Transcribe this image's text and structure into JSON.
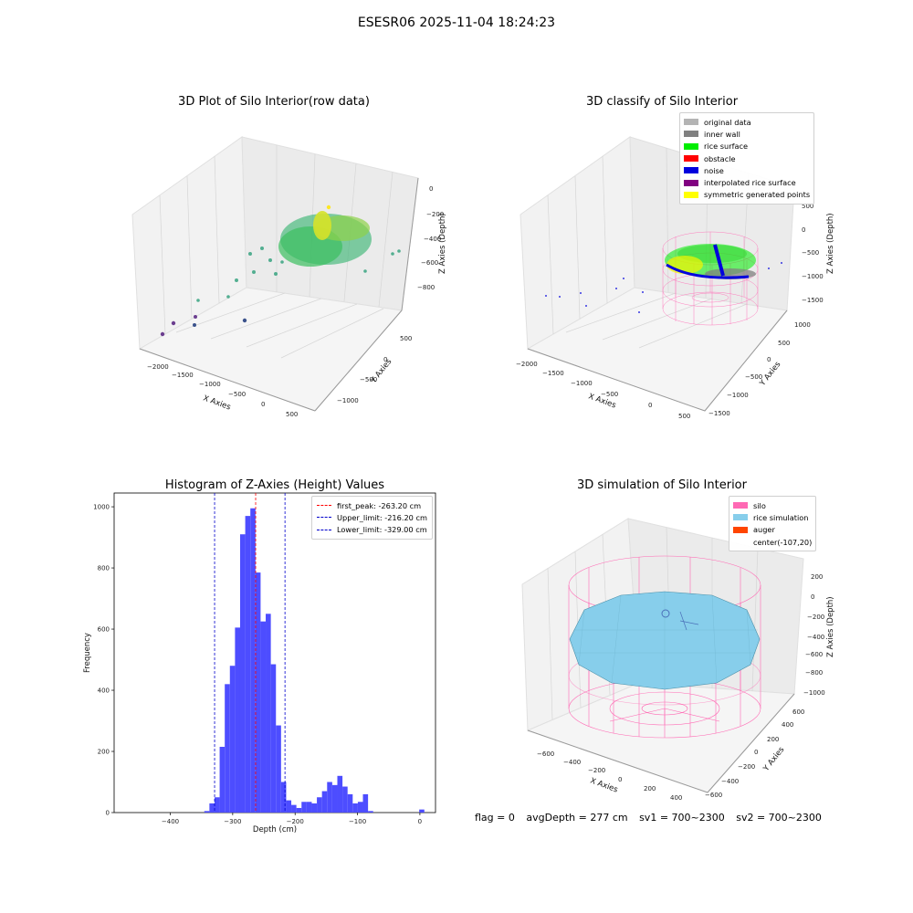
{
  "suptitle": "ESESR06 2025-11-04 18:24:23",
  "panels": {
    "raw": {
      "title": "3D Plot of Silo Interior(row data)",
      "xlabel": "X Axies",
      "ylabel": "Y Axies",
      "zlabel": "Z Axies (Depth)",
      "xticks": [
        "−2000",
        "−1500",
        "−1000",
        "−500",
        "0",
        "500"
      ],
      "yticks": [
        "500",
        "0",
        "−500",
        "−1000"
      ],
      "zticks": [
        "0",
        "−200",
        "−400",
        "−600",
        "−800"
      ]
    },
    "classify": {
      "title": "3D classify of Silo Interior",
      "xlabel": "X Axies",
      "ylabel": "Y Axies",
      "zlabel": "Z Axies (Depth)",
      "xticks": [
        "−2000",
        "−1500",
        "−1000",
        "−500",
        "0",
        "500"
      ],
      "yticks": [
        "1000",
        "500",
        "0",
        "−500",
        "−1000",
        "−1500"
      ],
      "zticks": [
        "500",
        "0",
        "−500",
        "−1000",
        "−1500"
      ],
      "legend": [
        {
          "label": "original data",
          "color": "#b4b4b4"
        },
        {
          "label": "inner wall",
          "color": "#808080"
        },
        {
          "label": "rice surface",
          "color": "#00ee00"
        },
        {
          "label": "obstacle",
          "color": "#ff0000"
        },
        {
          "label": "noise",
          "color": "#0000dd"
        },
        {
          "label": "interpolated rice surface",
          "color": "#800080"
        },
        {
          "label": "symmetric generated points",
          "color": "#ffff00"
        }
      ]
    },
    "simulation": {
      "title": "3D simulation of Silo Interior",
      "xlabel": "X Axies",
      "ylabel": "Y Axies",
      "zlabel": "Z Axies (Depth)",
      "xticks": [
        "−600",
        "−400",
        "−200",
        "0",
        "200",
        "400"
      ],
      "yticks": [
        "600",
        "400",
        "200",
        "0",
        "−200",
        "−400",
        "−600"
      ],
      "zticks": [
        "200",
        "0",
        "−200",
        "−400",
        "−600",
        "−800",
        "−1000"
      ],
      "legend": [
        {
          "label": "silo",
          "color": "#ff69b4"
        },
        {
          "label": "rice simulation",
          "color": "#87ceeb"
        },
        {
          "label": "auger",
          "color": "#ff4500"
        },
        {
          "label": "center(-107,20)",
          "color": ""
        }
      ]
    }
  },
  "chart_data": {
    "type": "bar",
    "title": "Histogram of Z-Axies (Height) Values",
    "xlabel": "Depth (cm)",
    "ylabel": "Frequency",
    "xlim": [
      -490,
      25
    ],
    "ylim": [
      0,
      1045
    ],
    "xticks": [
      -400,
      -300,
      -200,
      -100,
      0
    ],
    "yticks": [
      0,
      200,
      400,
      600,
      800,
      1000
    ],
    "bin_width": 8.2,
    "bin_starts": [
      -345.5,
      -337.3,
      -329.1,
      -320.9,
      -312.7,
      -304.5,
      -296.3,
      -288.1,
      -279.9,
      -271.7,
      -263.5,
      -255.3,
      -247.1,
      -238.9,
      -230.7,
      -222.5,
      -214.3,
      -206.1,
      -197.9,
      -189.7,
      -181.5,
      -173.3,
      -165.1,
      -156.9,
      -148.7,
      -140.5,
      -132.3,
      -124.1,
      -115.9,
      -107.7,
      -99.5,
      -91.3,
      -83.1,
      -74.9,
      -66.7,
      -58.5,
      -50.3,
      -42.1,
      -33.9,
      -25.7,
      -17.5,
      -9.3,
      -1.1
    ],
    "counts": [
      5,
      30,
      50,
      215,
      420,
      480,
      605,
      910,
      970,
      995,
      785,
      625,
      650,
      485,
      285,
      100,
      40,
      25,
      15,
      35,
      35,
      30,
      50,
      70,
      100,
      90,
      120,
      85,
      60,
      30,
      35,
      60,
      5,
      0,
      0,
      0,
      0,
      0,
      0,
      0,
      0,
      0,
      10
    ],
    "series": [
      {
        "name": "first_peak: -263.20 cm",
        "value": -263.2,
        "color": "#ff0000"
      },
      {
        "name": "Upper_limit: -216.20 cm",
        "value": -216.2,
        "color": "#0000cc"
      },
      {
        "name": "Lower_limit: -329.00 cm",
        "value": -329.0,
        "color": "#0000cc"
      }
    ],
    "bar_color": "#4d4dff",
    "legend_position": "top-right"
  },
  "footer": {
    "flag": "flag = 0",
    "avg": "avgDepth = 277 cm",
    "sv1": "sv1 = 700~2300",
    "sv2": "sv2 = 700~2300"
  }
}
